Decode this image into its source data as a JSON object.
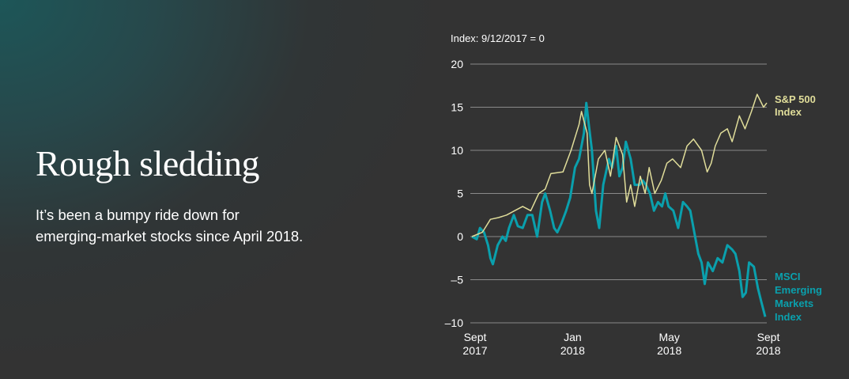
{
  "header": {
    "title": "Rough sledding",
    "subtitle": "It’s been a bumpy ride down for emerging-market stocks since April 2018."
  },
  "chart_data": {
    "type": "line",
    "title": "",
    "ylabel": "Index: 9/12/2017 = 0",
    "xlabel": "",
    "ylim": [
      -10,
      20
    ],
    "yticks": [
      "20",
      "15",
      "10",
      "5",
      "0",
      "–5",
      "–10"
    ],
    "ytick_values": [
      20,
      15,
      10,
      5,
      0,
      -5,
      -10
    ],
    "xlim": [
      "2017-09-12",
      "2018-09-13"
    ],
    "xticks": [
      {
        "date": "2017-09-12",
        "line1": "Sept",
        "line2": "2017"
      },
      {
        "date": "2018-01-15",
        "line1": "Jan",
        "line2": "2018"
      },
      {
        "date": "2018-05-15",
        "line1": "May",
        "line2": "2018"
      },
      {
        "date": "2018-09-12",
        "line1": "Sept",
        "line2": "2018"
      }
    ],
    "grid": true,
    "legend": "direct labels at right end of lines",
    "series": [
      {
        "name": "S&P 500 Index",
        "label_lines": [
          "S&P 500",
          "Index"
        ],
        "color": "#e0dd9a",
        "points": [
          [
            "2017-09-12",
            0
          ],
          [
            "2017-09-25",
            0.5
          ],
          [
            "2017-10-05",
            2
          ],
          [
            "2017-10-15",
            2.2
          ],
          [
            "2017-10-25",
            2.5
          ],
          [
            "2017-11-04",
            3
          ],
          [
            "2017-11-14",
            3.5
          ],
          [
            "2017-11-24",
            3
          ],
          [
            "2017-12-04",
            5
          ],
          [
            "2017-12-12",
            5.5
          ],
          [
            "2017-12-19",
            7.3
          ],
          [
            "2018-01-03",
            7.5
          ],
          [
            "2018-01-13",
            10
          ],
          [
            "2018-01-23",
            13
          ],
          [
            "2018-01-26",
            14.5
          ],
          [
            "2018-02-02",
            12
          ],
          [
            "2018-02-05",
            6
          ],
          [
            "2018-02-08",
            5
          ],
          [
            "2018-02-16",
            9
          ],
          [
            "2018-02-24",
            10
          ],
          [
            "2018-03-03",
            7
          ],
          [
            "2018-03-10",
            11.5
          ],
          [
            "2018-03-18",
            9.5
          ],
          [
            "2018-03-23",
            4
          ],
          [
            "2018-03-28",
            6
          ],
          [
            "2018-04-02",
            3.5
          ],
          [
            "2018-04-09",
            7
          ],
          [
            "2018-04-15",
            5
          ],
          [
            "2018-04-20",
            8
          ],
          [
            "2018-04-27",
            5
          ],
          [
            "2018-05-05",
            6.5
          ],
          [
            "2018-05-12",
            8.5
          ],
          [
            "2018-05-19",
            9
          ],
          [
            "2018-05-29",
            8
          ],
          [
            "2018-06-06",
            10.5
          ],
          [
            "2018-06-14",
            11.3
          ],
          [
            "2018-06-24",
            10
          ],
          [
            "2018-07-01",
            7.5
          ],
          [
            "2018-07-06",
            8.5
          ],
          [
            "2018-07-11",
            10.5
          ],
          [
            "2018-07-18",
            12
          ],
          [
            "2018-07-26",
            12.5
          ],
          [
            "2018-08-01",
            11
          ],
          [
            "2018-08-10",
            14
          ],
          [
            "2018-08-17",
            12.5
          ],
          [
            "2018-08-25",
            14.5
          ],
          [
            "2018-09-01",
            16.5
          ],
          [
            "2018-09-09",
            15
          ],
          [
            "2018-09-13",
            15.5
          ]
        ]
      },
      {
        "name": "MSCI Emerging Markets Index",
        "label_lines": [
          "MSCI",
          "Emerging",
          "Markets",
          "Index"
        ],
        "color": "#0aa0ad",
        "points": [
          [
            "2017-09-12",
            0
          ],
          [
            "2017-09-18",
            -0.3
          ],
          [
            "2017-09-22",
            1
          ],
          [
            "2017-09-27",
            0.5
          ],
          [
            "2017-10-02",
            -1
          ],
          [
            "2017-10-05",
            -2.5
          ],
          [
            "2017-10-08",
            -3.2
          ],
          [
            "2017-10-14",
            -1
          ],
          [
            "2017-10-20",
            0
          ],
          [
            "2017-10-24",
            -0.5
          ],
          [
            "2017-10-28",
            1
          ],
          [
            "2017-11-03",
            2.5
          ],
          [
            "2017-11-08",
            1.2
          ],
          [
            "2017-11-14",
            1
          ],
          [
            "2017-11-20",
            2.5
          ],
          [
            "2017-11-26",
            2.5
          ],
          [
            "2017-12-02",
            0
          ],
          [
            "2017-12-08",
            4
          ],
          [
            "2017-12-12",
            5
          ],
          [
            "2017-12-18",
            3
          ],
          [
            "2017-12-23",
            1
          ],
          [
            "2017-12-27",
            0.5
          ],
          [
            "2018-01-01",
            1.5
          ],
          [
            "2018-01-07",
            3
          ],
          [
            "2018-01-12",
            4.5
          ],
          [
            "2018-01-18",
            8
          ],
          [
            "2018-01-23",
            9
          ],
          [
            "2018-01-29",
            12
          ],
          [
            "2018-02-01",
            15.5
          ],
          [
            "2018-02-04",
            13
          ],
          [
            "2018-02-08",
            10
          ],
          [
            "2018-02-13",
            3
          ],
          [
            "2018-02-17",
            1
          ],
          [
            "2018-02-22",
            6
          ],
          [
            "2018-03-01",
            9
          ],
          [
            "2018-03-05",
            8
          ],
          [
            "2018-03-10",
            10.5
          ],
          [
            "2018-03-14",
            7
          ],
          [
            "2018-03-18",
            8
          ],
          [
            "2018-03-22",
            11
          ],
          [
            "2018-03-28",
            9
          ],
          [
            "2018-04-02",
            6
          ],
          [
            "2018-04-08",
            6
          ],
          [
            "2018-04-12",
            6.5
          ],
          [
            "2018-04-16",
            6
          ],
          [
            "2018-04-21",
            5
          ],
          [
            "2018-04-26",
            3
          ],
          [
            "2018-05-01",
            4
          ],
          [
            "2018-05-06",
            3.5
          ],
          [
            "2018-05-10",
            5
          ],
          [
            "2018-05-14",
            3.5
          ],
          [
            "2018-05-20",
            3
          ],
          [
            "2018-05-26",
            1
          ],
          [
            "2018-06-01",
            4
          ],
          [
            "2018-06-06",
            3.5
          ],
          [
            "2018-06-10",
            3
          ],
          [
            "2018-06-16",
            0
          ],
          [
            "2018-06-20",
            -2
          ],
          [
            "2018-06-24",
            -3
          ],
          [
            "2018-06-28",
            -5.5
          ],
          [
            "2018-07-02",
            -3
          ],
          [
            "2018-07-08",
            -4
          ],
          [
            "2018-07-14",
            -2.5
          ],
          [
            "2018-07-20",
            -3
          ],
          [
            "2018-07-26",
            -1
          ],
          [
            "2018-08-01",
            -1.5
          ],
          [
            "2018-08-05",
            -2
          ],
          [
            "2018-08-10",
            -4
          ],
          [
            "2018-08-14",
            -7
          ],
          [
            "2018-08-18",
            -6.5
          ],
          [
            "2018-08-22",
            -3
          ],
          [
            "2018-08-28",
            -3.5
          ],
          [
            "2018-09-02",
            -6
          ],
          [
            "2018-09-06",
            -7.5
          ],
          [
            "2018-09-11",
            -9.3
          ]
        ]
      }
    ]
  }
}
